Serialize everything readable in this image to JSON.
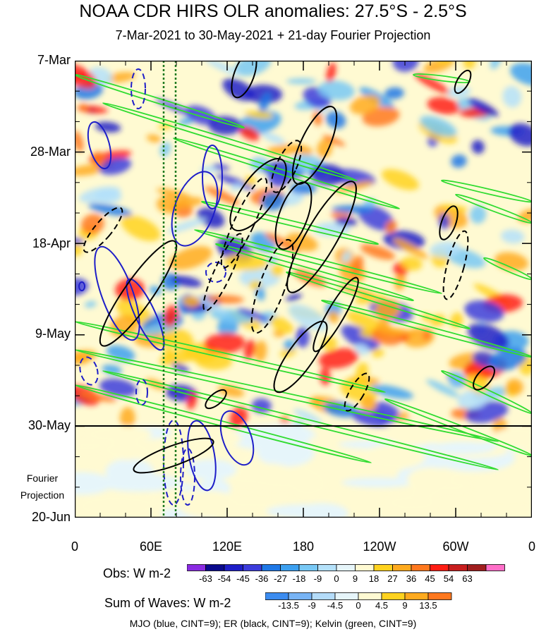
{
  "chart_data": {
    "type": "heatmap",
    "title": "NOAA CDR HIRS OLR anomalies: 27.5°S - 2.5°S",
    "subtitle": "7-Mar-2021 to 30-May-2021 + 21-day Fourier Projection",
    "y_ticks": [
      "7-Mar",
      "28-Mar",
      "18-Apr",
      "9-May",
      "30-May",
      "20-Jun"
    ],
    "x_ticks": [
      "0",
      "60E",
      "120E",
      "180",
      "120W",
      "60W",
      "0"
    ],
    "projection_label": [
      "Fourier",
      "Projection"
    ],
    "legend_obs": {
      "title": "Obs: W m-2",
      "levels": [
        "-63",
        "-54",
        "-45",
        "-36",
        "-27",
        "-18",
        "-9",
        "0",
        "9",
        "18",
        "27",
        "36",
        "45",
        "54",
        "63"
      ],
      "colors": [
        "#8a2be2",
        "#0a0a8c",
        "#1e1ec8",
        "#3c3cdc",
        "#1f78e6",
        "#3ca0f0",
        "#78c8f5",
        "#b4e1fa",
        "#e6f5fa",
        "#fffad2",
        "#ffd21e",
        "#ffaa1e",
        "#ff781e",
        "#ff1e14",
        "#c81e1e",
        "#a01e1e",
        "#ff6ec8"
      ]
    },
    "legend_waves": {
      "title": "Sum of Waves: W m-2",
      "levels": [
        "-13.5",
        "-9",
        "-4.5",
        "0",
        "4.5",
        "9",
        "13.5"
      ],
      "colors": [
        "#3c8cf0",
        "#78b4f5",
        "#b4dcfa",
        "#e6f5fa",
        "#fffad2",
        "#ffd21e",
        "#ffaa1e",
        "#ff781e"
      ]
    },
    "footnote": "MJO (blue, CINT=9); ER (black, CINT=9); Kelvin (green, CINT=9)",
    "series_colors": {
      "MJO": "#1e1ec8",
      "ER": "#000000",
      "Kelvin": "#32dc32"
    }
  }
}
